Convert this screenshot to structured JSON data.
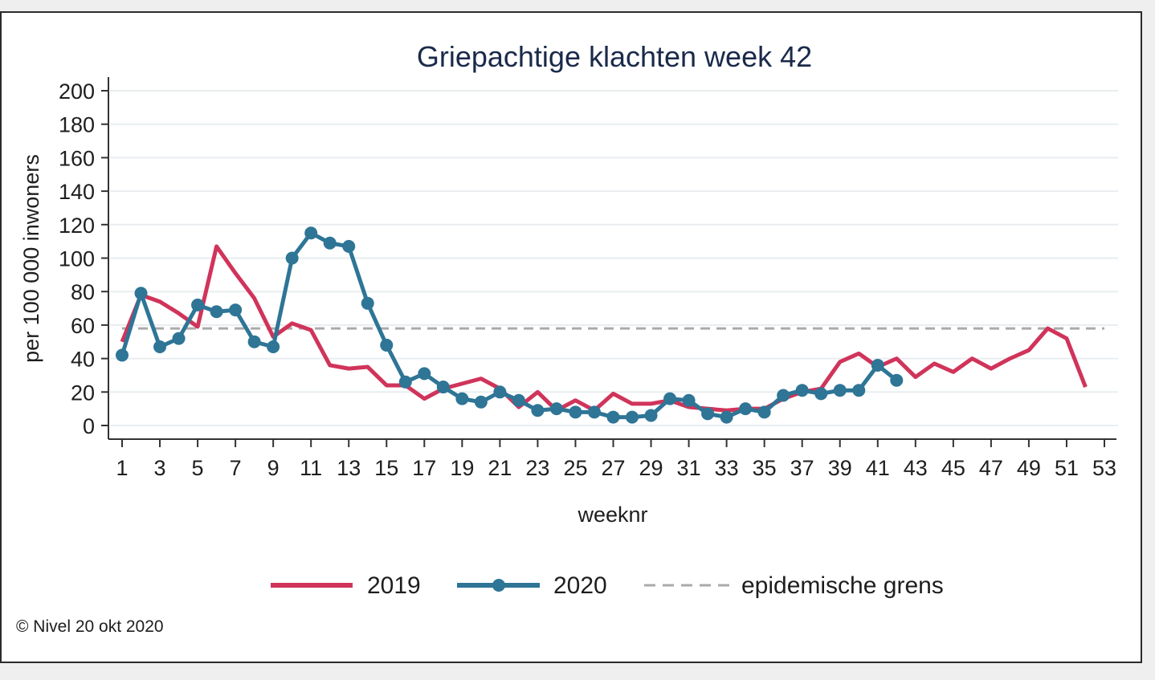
{
  "chart_data": {
    "type": "line",
    "title": "Griepachtige klachten week 42",
    "xlabel": "weeknr",
    "ylabel": "per 100 000 inwoners",
    "xlim": [
      1,
      53
    ],
    "ylim": [
      0,
      200
    ],
    "x_ticks": [
      "1",
      "3",
      "5",
      "7",
      "9",
      "11",
      "13",
      "15",
      "17",
      "19",
      "21",
      "23",
      "25",
      "27",
      "29",
      "31",
      "33",
      "35",
      "37",
      "39",
      "41",
      "43",
      "45",
      "47",
      "49",
      "51",
      "53"
    ],
    "y_ticks": [
      "0",
      "20",
      "40",
      "60",
      "80",
      "100",
      "120",
      "140",
      "160",
      "180",
      "200"
    ],
    "grid": true,
    "legend_position": "bottom",
    "colors": {
      "s2019": "#d0345a",
      "s2020": "#2e7596",
      "threshold": "#aaaaaa"
    },
    "series": [
      {
        "name": "2019",
        "x": [
          1,
          2,
          3,
          4,
          5,
          6,
          7,
          8,
          9,
          10,
          11,
          12,
          13,
          14,
          15,
          16,
          17,
          18,
          19,
          20,
          21,
          22,
          23,
          24,
          25,
          26,
          27,
          28,
          29,
          30,
          31,
          32,
          33,
          34,
          35,
          36,
          37,
          38,
          39,
          40,
          41,
          42,
          43,
          44,
          45,
          46,
          47,
          48,
          49,
          50,
          51,
          52
        ],
        "values": [
          50,
          78,
          74,
          67,
          59,
          107,
          91,
          76,
          53,
          61,
          57,
          36,
          34,
          35,
          24,
          24,
          16,
          22,
          25,
          28,
          22,
          11,
          20,
          9,
          15,
          9,
          19,
          13,
          13,
          15,
          11,
          10,
          9,
          10,
          10,
          16,
          20,
          22,
          38,
          43,
          35,
          40,
          29,
          37,
          32,
          40,
          34,
          40,
          45,
          58,
          52,
          23
        ]
      },
      {
        "name": "2020",
        "x": [
          1,
          2,
          3,
          4,
          5,
          6,
          7,
          8,
          9,
          10,
          11,
          12,
          13,
          14,
          15,
          16,
          17,
          18,
          19,
          20,
          21,
          22,
          23,
          24,
          25,
          26,
          27,
          28,
          29,
          30,
          31,
          32,
          33,
          34,
          35,
          36,
          37,
          38,
          39,
          40,
          41,
          42
        ],
        "values": [
          42,
          79,
          47,
          52,
          72,
          68,
          69,
          50,
          47,
          100,
          115,
          109,
          107,
          73,
          48,
          26,
          31,
          23,
          16,
          14,
          20,
          15,
          9,
          10,
          8,
          8,
          5,
          5,
          6,
          16,
          15,
          7,
          5,
          10,
          8,
          18,
          21,
          19,
          21,
          21,
          36,
          27
        ]
      },
      {
        "name": "epidemische grens",
        "x": [
          1,
          53
        ],
        "values": [
          58,
          58
        ],
        "style": "dashed"
      }
    ]
  },
  "legend": {
    "items": [
      "2019",
      "2020",
      "epidemische grens"
    ]
  },
  "credit": "© Nivel 20 okt 2020"
}
